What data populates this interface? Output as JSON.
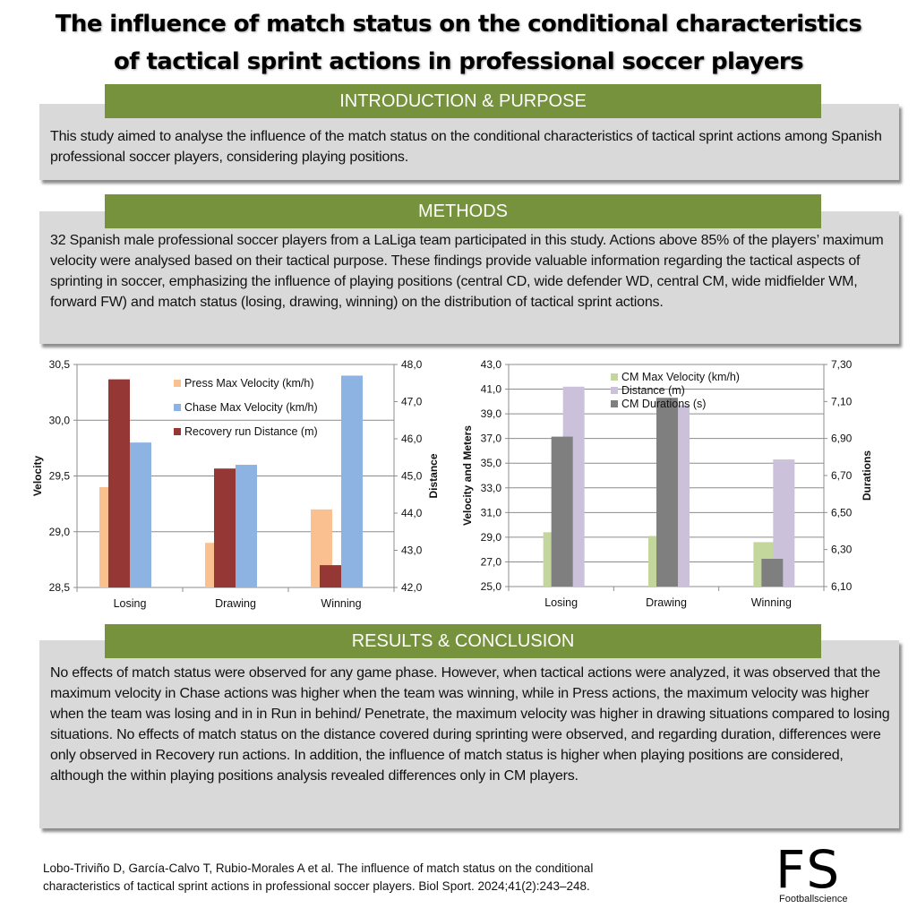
{
  "title": {
    "line1": "The influence of match status on the conditional characteristics",
    "line2": "of tactical sprint actions in professional soccer players"
  },
  "sections": {
    "intro": {
      "heading": "INTRODUCTION & PURPOSE",
      "text": "This study aimed to analyse the influence of the match status on the conditional characteristics of tactical sprint actions among Spanish professional soccer players, considering playing positions."
    },
    "methods": {
      "heading": "METHODS",
      "text": "32 Spanish male professional soccer players from a LaLiga team participated in this study. Actions above 85% of the players’ maximum velocity were analysed based on their tactical purpose. These findings provide valuable information regarding the tactical aspects of sprinting in soccer, emphasizing the influence of playing positions (central CD, wide defender WD, central CM, wide midfielder WM, forward FW) and match status (losing, drawing, winning) on the distribution of tactical sprint actions."
    },
    "results": {
      "heading": "RESULTS & CONCLUSION",
      "text": "No effects of match status were observed for any game phase. However, when tactical actions were analyzed, it was observed that the maximum velocity in Chase actions was higher when the team was winning, while in Press actions, the maximum velocity was higher when the team was losing and in in Run in behind/ Penetrate, the maximum velocity was higher in drawing situations compared to losing situations. No effects of match status on the distance covered during sprinting were observed, and regarding duration, differences were only observed in Recovery run actions. In addition, the influence of match status is higher when playing positions are considered, although the within playing positions analysis revealed differences only in CM players."
    }
  },
  "chart_data": [
    {
      "type": "bar",
      "title": "",
      "categories": [
        "Losing",
        "Drawing",
        "Winning"
      ],
      "xlabel": "",
      "ylabel": "Velocity",
      "y2label": "Distance",
      "ylim": [
        28.5,
        30.5
      ],
      "y2lim": [
        42.0,
        48.0
      ],
      "yticks": [
        "28,5",
        "29,0",
        "29,5",
        "30,0",
        "30,5"
      ],
      "y2ticks": [
        "42,0",
        "43,0",
        "44,0",
        "45,0",
        "46,0",
        "47,0",
        "48,0"
      ],
      "grid": true,
      "legend_position": "upper-center-inside",
      "series": [
        {
          "name": "Press Max Velocity (km/h)",
          "axis": "left",
          "color": "#fac090",
          "values": [
            29.4,
            28.9,
            29.2
          ]
        },
        {
          "name": "Recovery run Distance (m)",
          "axis": "right",
          "color": "#953735",
          "values": [
            47.6,
            45.2,
            42.6
          ]
        },
        {
          "name": "Chase Max Velocity (km/h)",
          "axis": "left",
          "color": "#8db3e2",
          "values": [
            29.8,
            29.6,
            30.4
          ]
        }
      ],
      "legend_order": [
        "Press Max Velocity (km/h)",
        "Chase Max Velocity (km/h)",
        "Recovery run Distance (m)"
      ]
    },
    {
      "type": "bar",
      "title": "",
      "categories": [
        "Losing",
        "Drawing",
        "Winning"
      ],
      "xlabel": "",
      "ylabel": "Velocity and Meters",
      "y2label": "Durations",
      "ylim": [
        25.0,
        43.0
      ],
      "y2lim": [
        6.1,
        7.3
      ],
      "yticks": [
        "25,0",
        "27,0",
        "29,0",
        "31,0",
        "33,0",
        "35,0",
        "37,0",
        "39,0",
        "41,0",
        "43,0"
      ],
      "y2ticks": [
        "6,10",
        "6,30",
        "6,50",
        "6,70",
        "6,90",
        "7,10",
        "7,30"
      ],
      "grid": true,
      "legend_position": "upper-center-inside",
      "series": [
        {
          "name": "CM Max Velocity (km/h)",
          "axis": "left",
          "color": "#c3d69b",
          "values": [
            29.4,
            29.1,
            28.6
          ]
        },
        {
          "name": "CM Durations (s)",
          "axis": "right",
          "color": "#7f7f7f",
          "values": [
            6.91,
            7.12,
            6.25
          ]
        },
        {
          "name": "Distance (m)",
          "axis": "left",
          "color": "#ccc1da",
          "values": [
            41.2,
            39.7,
            35.3
          ]
        }
      ],
      "legend_order": [
        "CM Max Velocity (km/h)",
        "Distance (m)",
        "CM Durations (s)"
      ]
    }
  ],
  "citation": {
    "line1": "Lobo-Triviño D, García-Calvo T, Rubio-Morales A et al. The influence of match status on the conditional",
    "line2": "characteristics of tactical sprint actions in professional soccer players. Biol Sport. 2024;41(2):243–248."
  },
  "logo": {
    "mark": "FS",
    "name": "Footballscience"
  },
  "colors": {
    "header_green": "#76923c",
    "box_gray": "#d9d9d9"
  }
}
